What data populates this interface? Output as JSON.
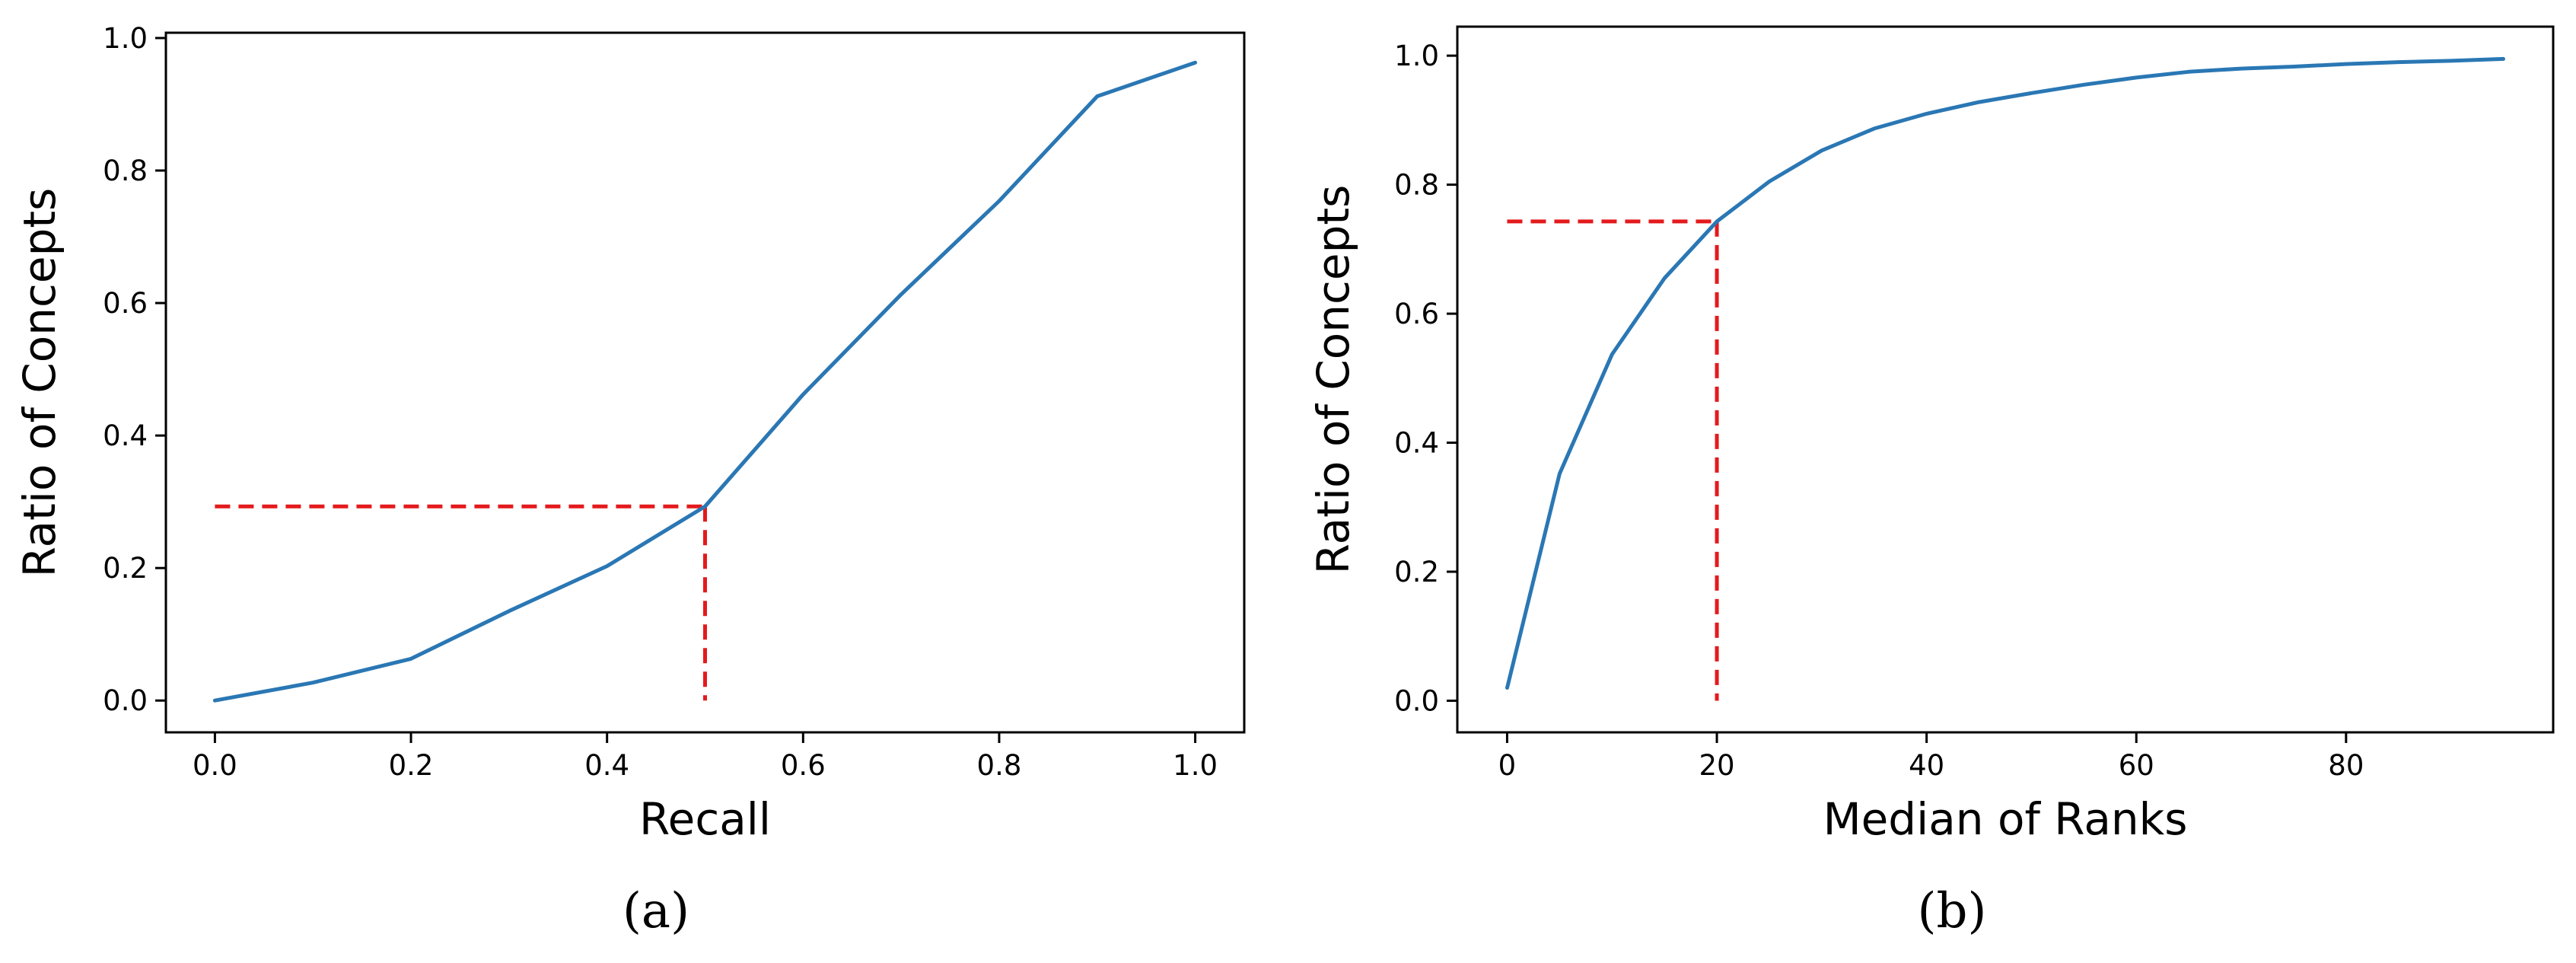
{
  "captions": [
    "(a)",
    "(b)"
  ],
  "colors": {
    "line": "#2a77b4",
    "reference": "#e41a1c",
    "axes": "#000000"
  },
  "chart_data": [
    {
      "type": "line",
      "title": "",
      "xlabel": "Recall",
      "ylabel": "Ratio of Concepts",
      "xlim": [
        -0.05,
        1.05
      ],
      "ylim": [
        -0.048,
        1.008
      ],
      "xticks": [
        0.0,
        0.2,
        0.4,
        0.6,
        0.8,
        1.0
      ],
      "xtick_labels": [
        "0.0",
        "0.2",
        "0.4",
        "0.6",
        "0.8",
        "1.0"
      ],
      "yticks": [
        0.0,
        0.2,
        0.4,
        0.6,
        0.8,
        1.0
      ],
      "ytick_labels": [
        "0.0",
        "0.2",
        "0.4",
        "0.6",
        "0.8",
        "1.0"
      ],
      "grid": false,
      "series": [
        {
          "x": [
            0.0,
            0.1,
            0.2,
            0.3,
            0.4,
            0.5,
            0.6,
            0.7,
            0.8,
            0.9,
            1.0
          ],
          "y": [
            0.0,
            0.027,
            0.063,
            0.135,
            0.203,
            0.293,
            0.462,
            0.613,
            0.754,
            0.912,
            0.963
          ]
        }
      ],
      "reference_point": {
        "x": 0.5,
        "y": 0.293
      }
    },
    {
      "type": "line",
      "title": "",
      "xlabel": "Median of Ranks",
      "ylabel": "Ratio of Concepts",
      "xlim": [
        -4.75,
        99.75
      ],
      "ylim": [
        -0.049,
        1.045
      ],
      "xticks": [
        0,
        20,
        40,
        60,
        80
      ],
      "xtick_labels": [
        "0",
        "20",
        "40",
        "60",
        "80"
      ],
      "yticks": [
        0.0,
        0.2,
        0.4,
        0.6,
        0.8,
        1.0
      ],
      "ytick_labels": [
        "0.0",
        "0.2",
        "0.4",
        "0.6",
        "0.8",
        "1.0"
      ],
      "grid": false,
      "series": [
        {
          "x": [
            0,
            5,
            10,
            15,
            20,
            25,
            30,
            35,
            40,
            45,
            50,
            55,
            60,
            65,
            70,
            75,
            80,
            85,
            90,
            95
          ],
          "y": [
            0.02,
            0.352,
            0.537,
            0.655,
            0.743,
            0.805,
            0.853,
            0.887,
            0.91,
            0.928,
            0.942,
            0.955,
            0.966,
            0.975,
            0.98,
            0.983,
            0.987,
            0.99,
            0.992,
            0.995
          ]
        }
      ],
      "reference_point": {
        "x": 20,
        "y": 0.743
      }
    }
  ]
}
